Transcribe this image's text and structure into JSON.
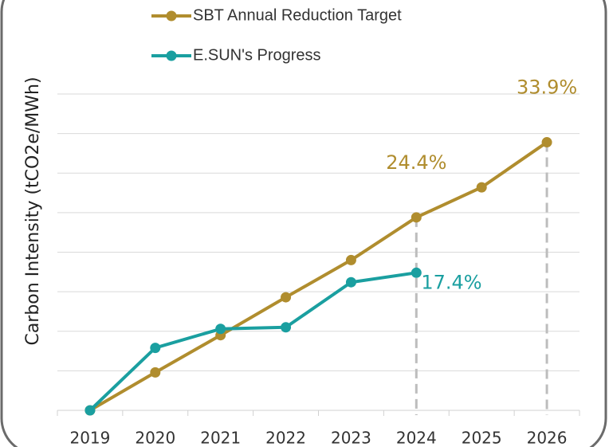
{
  "chart_data": {
    "type": "line",
    "y_label": "Carbon Intensity (tCO2e/MWh)",
    "categories": [
      "2019",
      "2020",
      "2021",
      "2022",
      "2023",
      "2024",
      "2025",
      "2026"
    ],
    "series": [
      {
        "name": "SBT Annual Reduction Target",
        "color": "#b08d2e",
        "values": [
          0,
          4.8,
          9.5,
          14.3,
          19.0,
          24.4,
          28.2,
          33.9
        ],
        "value_labels": [
          null,
          null,
          null,
          null,
          null,
          "24.4%",
          null,
          "33.9%"
        ]
      },
      {
        "name": "E.SUN's Progress",
        "color": "#1a9fa0",
        "values": [
          0,
          7.9,
          10.3,
          10.5,
          16.2,
          17.4,
          null,
          null
        ],
        "value_labels": [
          null,
          null,
          null,
          null,
          null,
          "17.4%",
          null,
          null
        ]
      }
    ],
    "ylim": [
      0,
      40
    ],
    "yticks": [
      0,
      5,
      10,
      15,
      20,
      25,
      30,
      35,
      40
    ],
    "grid": true,
    "legend": "top"
  }
}
